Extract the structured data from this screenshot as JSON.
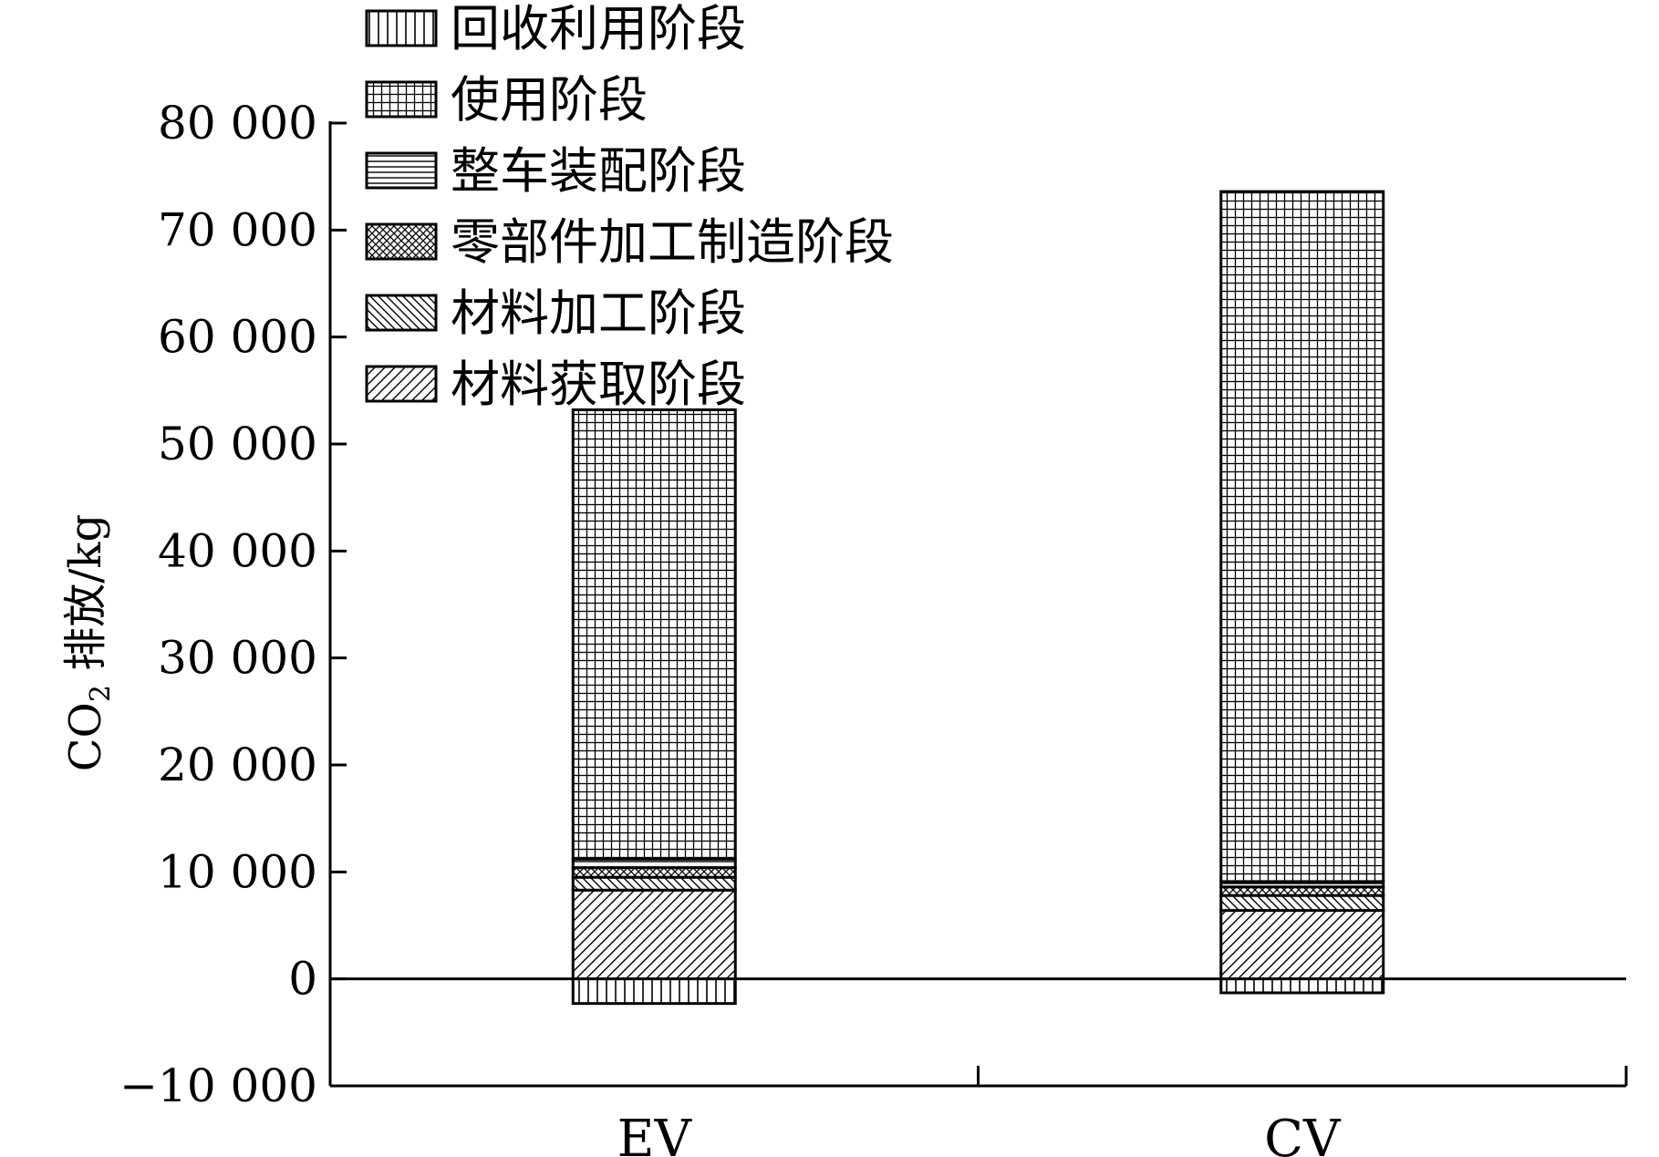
{
  "chart_data": {
    "type": "bar",
    "stacked": true,
    "categories": [
      "EV",
      "CV"
    ],
    "ylabel": "CO₂ 排放/kg",
    "ylabel_main": "CO",
    "ylabel_sub": "2",
    "ylabel_rest": " 排放/kg",
    "ylim": [
      -10000,
      80000
    ],
    "yticks": [
      -10000,
      0,
      10000,
      20000,
      30000,
      40000,
      50000,
      60000,
      70000,
      80000
    ],
    "ytick_labels": [
      "−10 000",
      "0",
      "10 000",
      "20 000",
      "30 000",
      "40 000",
      "50 000",
      "60 000",
      "70 000",
      "80 000"
    ],
    "legend_position": "top-left",
    "grid": false,
    "series": [
      {
        "name": "回收利用阶段",
        "pattern": "vertical-lines",
        "values": [
          -2300,
          -1300
        ]
      },
      {
        "name": "使用阶段",
        "pattern": "grid",
        "values": [
          42000,
          64500
        ]
      },
      {
        "name": "整车装配阶段",
        "pattern": "horizontal-lines",
        "values": [
          800,
          500
        ]
      },
      {
        "name": "零部件加工制造阶段",
        "pattern": "crosshatch",
        "values": [
          900,
          800
        ]
      },
      {
        "name": "材料加工阶段",
        "pattern": "back-diagonal",
        "values": [
          1200,
          1400
        ]
      },
      {
        "name": "材料获取阶段",
        "pattern": "forward-diagonal",
        "values": [
          8300,
          6400
        ]
      }
    ]
  }
}
